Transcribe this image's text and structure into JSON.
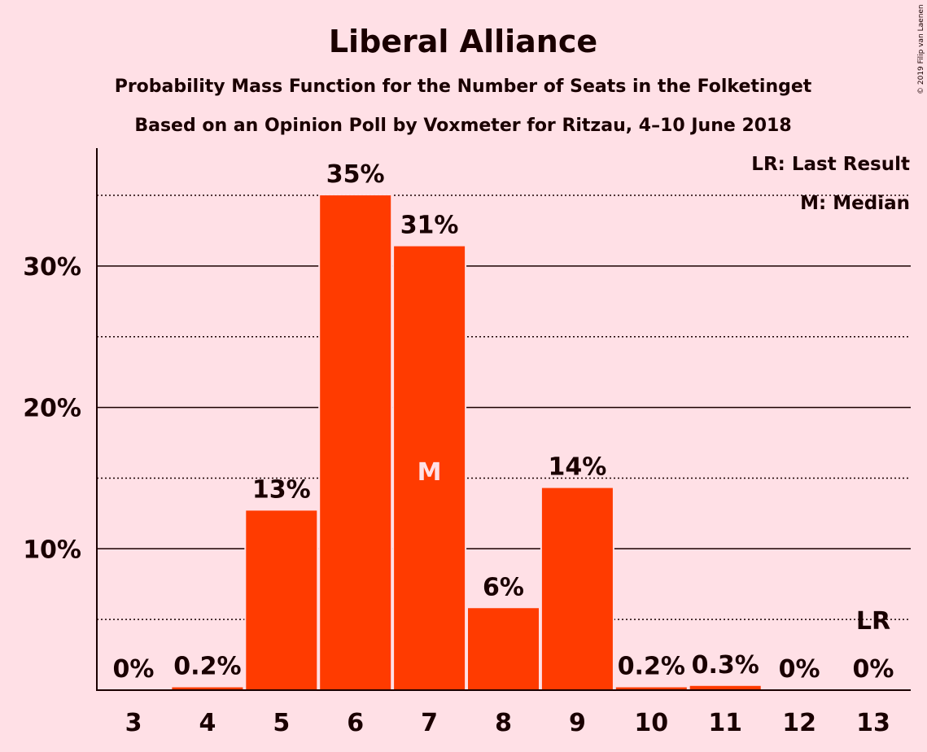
{
  "chart_data": {
    "type": "bar",
    "title": "Liberal Alliance",
    "subtitle": "Probability Mass Function for the Number of Seats in the Folketinget",
    "subtitle2": "Based on an Opinion Poll by Voxmeter for Ritzau, 4–10 June 2018",
    "copyright": "© 2019 Filip van Laenen",
    "categories": [
      "3",
      "4",
      "5",
      "6",
      "7",
      "8",
      "9",
      "10",
      "11",
      "12",
      "13"
    ],
    "values": [
      0,
      0.2,
      12.7,
      35.0,
      31.4,
      5.8,
      14.3,
      0.2,
      0.3,
      0,
      0
    ],
    "data_labels": [
      "0%",
      "0.2%",
      "13%",
      "35%",
      "31%",
      "6%",
      "14%",
      "0.2%",
      "0.3%",
      "0%",
      "0%"
    ],
    "yticks": [
      10,
      20,
      30
    ],
    "ytick_labels": [
      "10%",
      "20%",
      "30%"
    ],
    "minor_gridlines": [
      5,
      15,
      25,
      35
    ],
    "ylim": [
      0,
      38.5
    ],
    "bar_color": "#FF3B00",
    "background_color": "#FFE0E6",
    "median_category": "7",
    "median_marker": "M",
    "last_result_category": "13",
    "last_result_marker": "LR",
    "legend": [
      "LR: Last Result",
      "M: Median"
    ],
    "legend_position": "top-right"
  }
}
